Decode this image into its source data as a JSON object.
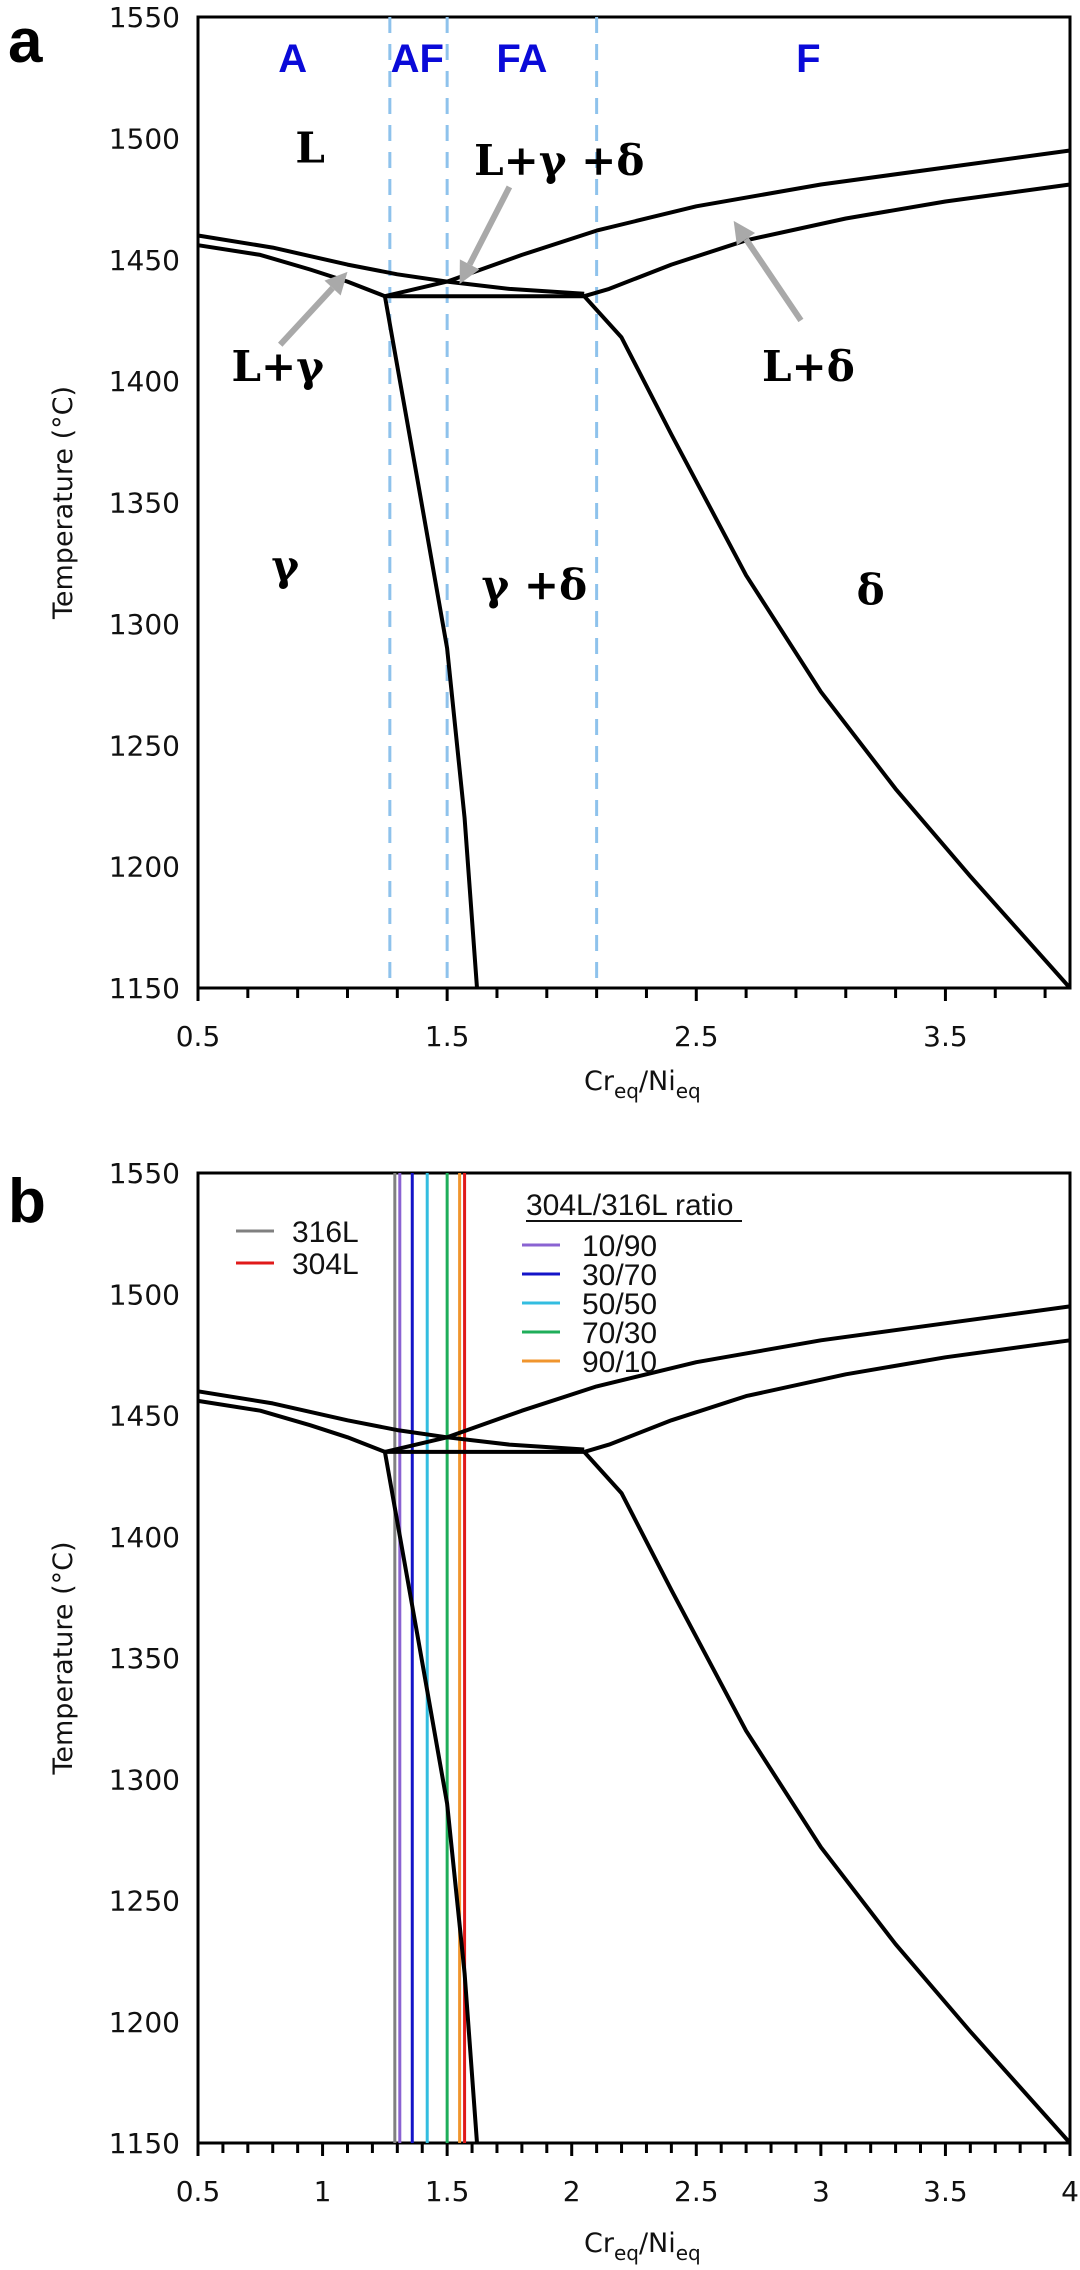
{
  "chart_data": [
    {
      "panel": "a",
      "type": "line",
      "title": "",
      "xlabel": "Cr_eq/Ni_eq",
      "xlabel_main": "Cr",
      "xlabel_sub1": "eq",
      "xlabel_mid": "/Ni",
      "xlabel_sub2": "eq",
      "ylabel": "Temperature (°C)",
      "xlim": [
        0.5,
        4.0
      ],
      "ylim": [
        1150,
        1550
      ],
      "x_tick_labels": [
        "0.5",
        "1.5",
        "2.5",
        "3.5"
      ],
      "x_tick_label_values": [
        0.5,
        1.5,
        2.5,
        3.5
      ],
      "x_minor_tick_step": 0.2,
      "y_tick_labels": [
        "1150",
        "1200",
        "1250",
        "1300",
        "1350",
        "1400",
        "1450",
        "1500",
        "1550"
      ],
      "grid": false,
      "series": [
        {
          "name": "liquidus-gamma",
          "x": [
            0.5,
            0.8,
            1.1,
            1.3,
            1.5,
            1.75,
            2.05
          ],
          "y": [
            1460,
            1455,
            1448,
            1444,
            1441,
            1438,
            1436
          ]
        },
        {
          "name": "solidus-gamma",
          "x": [
            0.5,
            0.75,
            0.95,
            1.1,
            1.25
          ],
          "y": [
            1456,
            1452,
            1446,
            1441,
            1435
          ]
        },
        {
          "name": "eutectic-line",
          "x": [
            1.25,
            2.05
          ],
          "y": [
            1435,
            1435
          ]
        },
        {
          "name": "liquidus-delta",
          "x": [
            1.25,
            1.5,
            1.8,
            2.1,
            2.5,
            3.0,
            3.5,
            4.0
          ],
          "y": [
            1435,
            1441,
            1452,
            1462,
            1472,
            1481,
            1488,
            1495
          ]
        },
        {
          "name": "solidus-delta",
          "x": [
            2.05,
            2.15,
            2.4,
            2.7,
            3.1,
            3.5,
            4.0
          ],
          "y": [
            1435,
            1438,
            1448,
            1458,
            1467,
            1474,
            1481
          ]
        },
        {
          "name": "solvus-gamma",
          "x": [
            1.25,
            1.38,
            1.5,
            1.57,
            1.62
          ],
          "y": [
            1435,
            1360,
            1290,
            1220,
            1150
          ]
        },
        {
          "name": "solvus-delta",
          "x": [
            2.05,
            2.2,
            2.4,
            2.7,
            3.0,
            3.3,
            3.6,
            4.0
          ],
          "y": [
            1435,
            1418,
            1378,
            1320,
            1272,
            1232,
            1196,
            1150
          ]
        }
      ],
      "mode_boundaries": [
        1.27,
        1.5,
        2.1
      ],
      "solidification_modes": [
        {
          "label": "A",
          "x": 0.88
        },
        {
          "label": "AF",
          "x": 1.38
        },
        {
          "label": "FA",
          "x": 1.8
        },
        {
          "label": "F",
          "x": 2.95
        }
      ],
      "phase_labels": [
        {
          "label": "L",
          "x": 0.95,
          "y": 1490
        },
        {
          "label": "L+γ +δ",
          "x": 1.95,
          "y": 1485
        },
        {
          "label": "L+γ",
          "x": 0.82,
          "y": 1400
        },
        {
          "label": "L+δ",
          "x": 2.95,
          "y": 1400
        },
        {
          "label": "γ",
          "x": 0.85,
          "y": 1318
        },
        {
          "label": "γ +δ",
          "x": 1.85,
          "y": 1310
        },
        {
          "label": "δ",
          "x": 3.2,
          "y": 1308
        }
      ],
      "arrows": [
        {
          "label": "L+γ",
          "from": [
            0.83,
            1415
          ],
          "to": [
            1.1,
            1445
          ]
        },
        {
          "label": "L+γ +δ",
          "from": [
            1.75,
            1480
          ],
          "to": [
            1.55,
            1440
          ]
        },
        {
          "label": "L+δ",
          "from": [
            2.92,
            1425
          ],
          "to": [
            2.65,
            1466
          ]
        }
      ]
    },
    {
      "panel": "b",
      "type": "line",
      "title": "",
      "xlabel": "Cr_eq/Ni_eq",
      "xlabel_main": "Cr",
      "xlabel_sub1": "eq",
      "xlabel_mid": "/Ni",
      "xlabel_sub2": "eq",
      "ylabel": "Temperature (°C)",
      "xlim": [
        0.5,
        4.0
      ],
      "ylim": [
        1150,
        1550
      ],
      "x_tick_labels": [
        "0.5",
        "1",
        "1.5",
        "2",
        "2.5",
        "3",
        "3.5",
        "4"
      ],
      "x_tick_label_values": [
        0.5,
        1.0,
        1.5,
        2.0,
        2.5,
        3.0,
        3.5,
        4.0
      ],
      "x_minor_tick_step": 0.1,
      "y_tick_labels": [
        "1150",
        "1200",
        "1250",
        "1300",
        "1350",
        "1400",
        "1450",
        "1500",
        "1550"
      ],
      "grid": false,
      "series": [
        {
          "name": "liquidus-gamma",
          "x": [
            0.5,
            0.8,
            1.1,
            1.3,
            1.5,
            1.75,
            2.05
          ],
          "y": [
            1460,
            1455,
            1448,
            1444,
            1441,
            1438,
            1436
          ]
        },
        {
          "name": "solidus-gamma",
          "x": [
            0.5,
            0.75,
            0.95,
            1.1,
            1.25
          ],
          "y": [
            1456,
            1452,
            1446,
            1441,
            1435
          ]
        },
        {
          "name": "eutectic-line",
          "x": [
            1.25,
            2.05
          ],
          "y": [
            1435,
            1435
          ]
        },
        {
          "name": "liquidus-delta",
          "x": [
            1.25,
            1.5,
            1.8,
            2.1,
            2.5,
            3.0,
            3.5,
            4.0
          ],
          "y": [
            1435,
            1441,
            1452,
            1462,
            1472,
            1481,
            1488,
            1495
          ]
        },
        {
          "name": "solidus-delta",
          "x": [
            2.05,
            2.15,
            2.4,
            2.7,
            3.1,
            3.5,
            4.0
          ],
          "y": [
            1435,
            1438,
            1448,
            1458,
            1467,
            1474,
            1481
          ]
        },
        {
          "name": "solvus-gamma",
          "x": [
            1.25,
            1.38,
            1.5,
            1.57,
            1.62
          ],
          "y": [
            1435,
            1360,
            1290,
            1220,
            1150
          ]
        },
        {
          "name": "solvus-delta",
          "x": [
            2.05,
            2.2,
            2.4,
            2.7,
            3.0,
            3.3,
            3.6,
            4.0
          ],
          "y": [
            1435,
            1418,
            1378,
            1320,
            1272,
            1232,
            1196,
            1150
          ]
        }
      ],
      "composition_lines": [
        {
          "name": "316L",
          "x": 1.29,
          "color": "#808080"
        },
        {
          "name": "10/90",
          "x": 1.31,
          "color": "#8a63d2"
        },
        {
          "name": "30/70",
          "x": 1.36,
          "color": "#1414c8"
        },
        {
          "name": "50/50",
          "x": 1.42,
          "color": "#33bde0"
        },
        {
          "name": "70/30",
          "x": 1.5,
          "color": "#1fae5a"
        },
        {
          "name": "90/10",
          "x": 1.55,
          "color": "#f0952e"
        },
        {
          "name": "304L",
          "x": 1.57,
          "color": "#e01a1a"
        }
      ],
      "legend": {
        "placement": "top-left",
        "items": [
          {
            "label": "316L",
            "color": "#808080"
          },
          {
            "label": "304L",
            "color": "#e01a1a"
          }
        ]
      },
      "ratio_legend": {
        "placement": "top-center",
        "title": "304L/316L ratio",
        "items": [
          {
            "label": "10/90",
            "color": "#8a63d2"
          },
          {
            "label": "30/70",
            "color": "#1414c8"
          },
          {
            "label": "50/50",
            "color": "#33bde0"
          },
          {
            "label": "70/30",
            "color": "#1fae5a"
          },
          {
            "label": "90/10",
            "color": "#f0952e"
          }
        ]
      }
    }
  ],
  "panels": {
    "a": {
      "letter": "a"
    },
    "b": {
      "letter": "b"
    }
  },
  "colors": {
    "mode_boundary": "#8ec2ec",
    "mode_label": "#0a0ad8",
    "arrow": "#a9a9a9",
    "curve": "#000000"
  }
}
